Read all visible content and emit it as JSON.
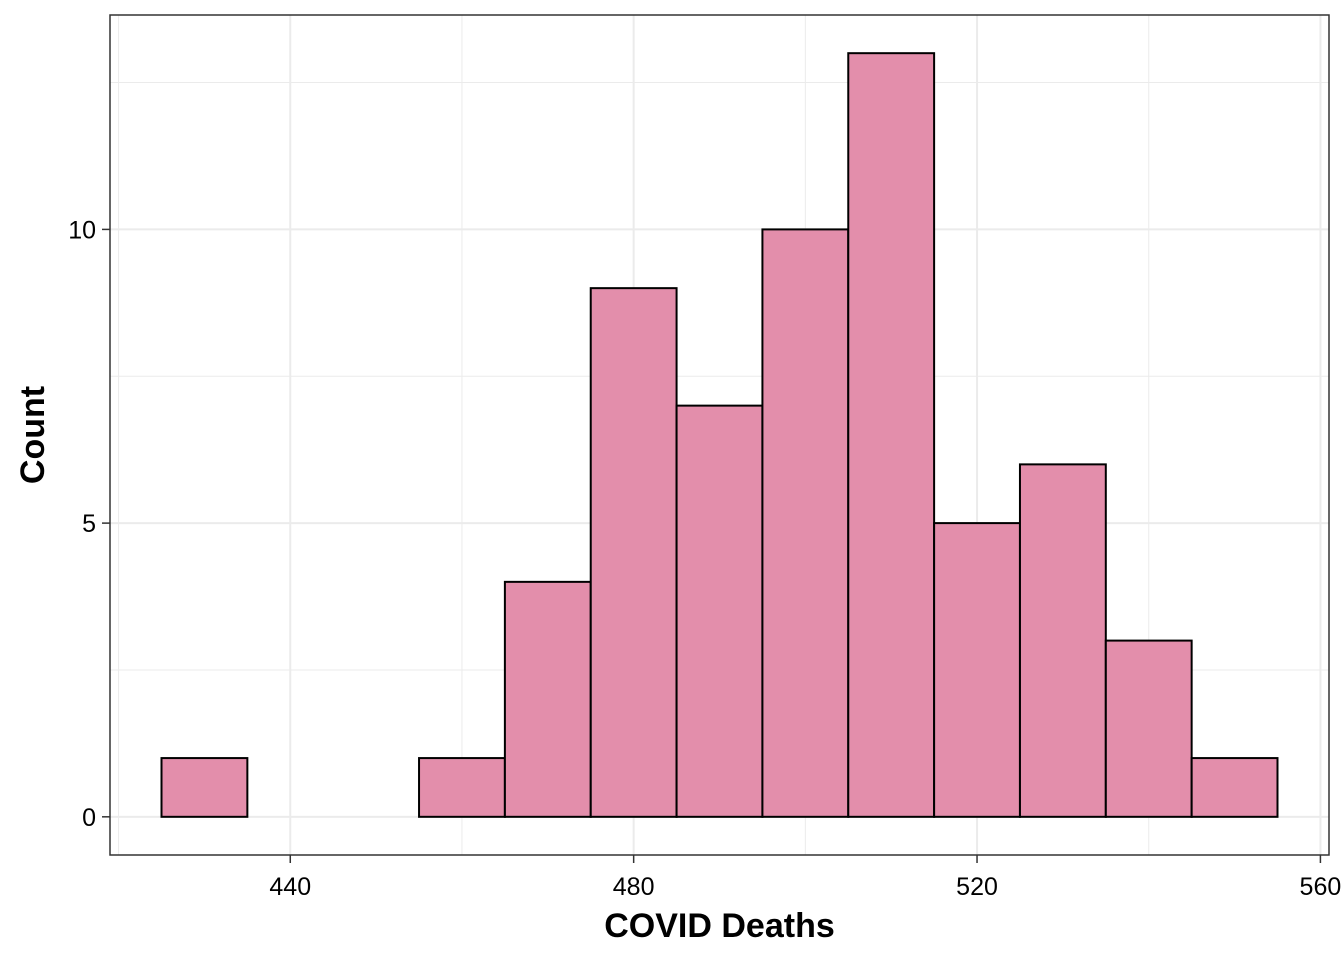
{
  "chart_data": {
    "type": "bar",
    "subtype": "histogram",
    "title": "",
    "xlabel": "COVID Deaths",
    "ylabel": "Count",
    "bin_width": 10,
    "bins": [
      {
        "start": 425,
        "end": 435,
        "count": 1
      },
      {
        "start": 435,
        "end": 445,
        "count": 0
      },
      {
        "start": 445,
        "end": 455,
        "count": 0
      },
      {
        "start": 455,
        "end": 465,
        "count": 1
      },
      {
        "start": 465,
        "end": 475,
        "count": 4
      },
      {
        "start": 475,
        "end": 485,
        "count": 9
      },
      {
        "start": 485,
        "end": 495,
        "count": 7
      },
      {
        "start": 495,
        "end": 505,
        "count": 10
      },
      {
        "start": 505,
        "end": 515,
        "count": 13
      },
      {
        "start": 515,
        "end": 525,
        "count": 5
      },
      {
        "start": 525,
        "end": 535,
        "count": 6
      },
      {
        "start": 535,
        "end": 545,
        "count": 3
      },
      {
        "start": 545,
        "end": 555,
        "count": 1
      }
    ],
    "xlim": [
      419,
      561
    ],
    "ylim": [
      -0.65,
      13.65
    ],
    "x_ticks": [
      440,
      480,
      520,
      560
    ],
    "x_tick_labels": [
      "440",
      "480",
      "520",
      "560"
    ],
    "y_ticks": [
      0,
      5,
      10
    ],
    "y_tick_labels": [
      "0",
      "5",
      "10"
    ],
    "x_minor_ticks": [
      420,
      460,
      500,
      540
    ],
    "y_minor_ticks": [
      2.5,
      7.5,
      12.5
    ],
    "grid": true,
    "legend": "none",
    "colors": {
      "bar_fill": "#e38eab",
      "bar_stroke": "#000000",
      "grid": "#ebebeb",
      "panel_border": "#333333"
    }
  }
}
